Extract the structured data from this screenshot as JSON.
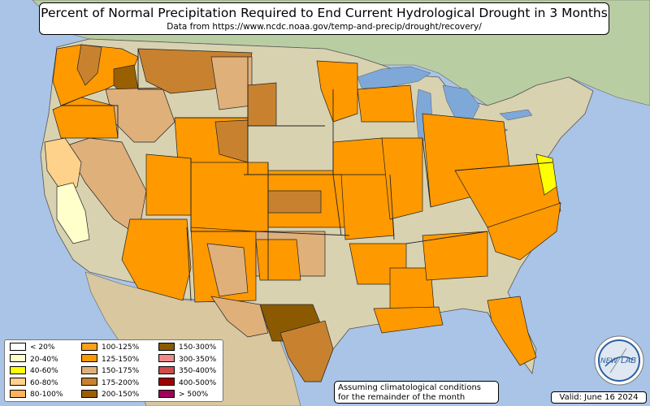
{
  "title": "Percent of Normal Precipitation Required to End Current Hydrological Drought in 3 Months",
  "subtitle": "Data from https://www.ncdc.noaa.gov/temp-and-precip/drought/recovery/",
  "assumption": {
    "line1": "Assuming climatological conditions",
    "line2": "for the remainder of the month"
  },
  "valid": "Valid: June 16 2024",
  "logo": {
    "text_left": "NEW",
    "text_right": "LAB"
  },
  "legend": [
    {
      "label": "< 20%",
      "color": "#ffffff"
    },
    {
      "label": "20-40%",
      "color": "#ffffcc"
    },
    {
      "label": "40-60%",
      "color": "#ffff00"
    },
    {
      "label": "60-80%",
      "color": "#ffd28c"
    },
    {
      "label": "80-100%",
      "color": "#ffb35a"
    },
    {
      "label": "100-125%",
      "color": "#ff9f1a"
    },
    {
      "label": "125-150%",
      "color": "#ff9900"
    },
    {
      "label": "150-175%",
      "color": "#dfb07a"
    },
    {
      "label": "175-200%",
      "color": "#c8822f"
    },
    {
      "label": "200-150%",
      "color": "#9a6000"
    },
    {
      "label": "150-300%",
      "color": "#8b5a00"
    },
    {
      "label": "300-350%",
      "color": "#f08a8a"
    },
    {
      "label": "350-400%",
      "color": "#d24a4a"
    },
    {
      "label": "400-500%",
      "color": "#a00000"
    },
    {
      "label": "> 500%",
      "color": "#a0005a"
    }
  ],
  "colors": {
    "water": "#a9c4e6",
    "land": "#cfc9a8",
    "land_canada": "#b5c9a0",
    "land_mexico": "#d6c59c",
    "great_lakes": "#7ea8d8"
  }
}
